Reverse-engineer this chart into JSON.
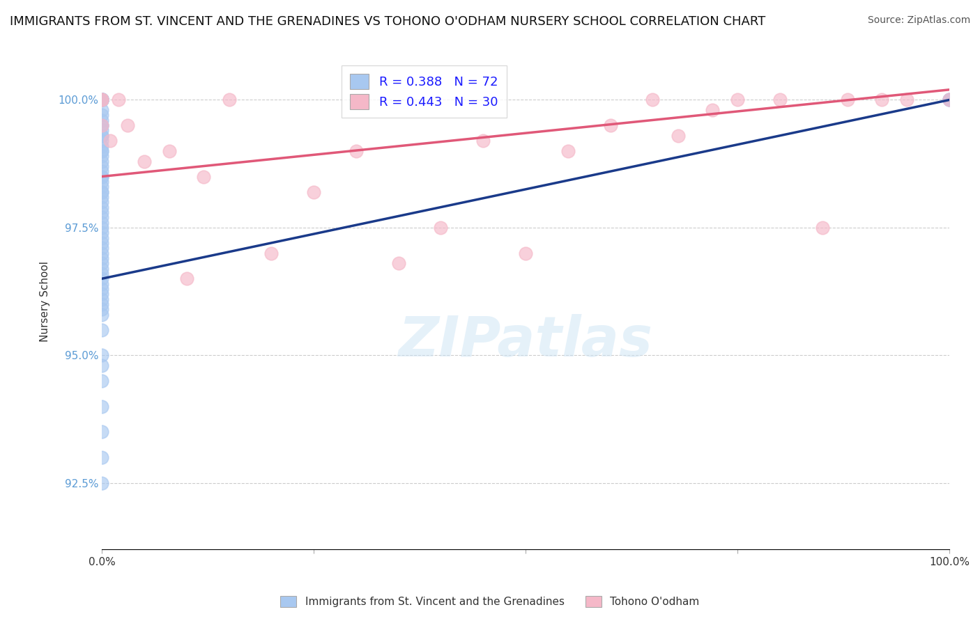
{
  "title": "IMMIGRANTS FROM ST. VINCENT AND THE GRENADINES VS TOHONO O'ODHAM NURSERY SCHOOL CORRELATION CHART",
  "source": "Source: ZipAtlas.com",
  "ylabel": "Nursery School",
  "legend_blue_label": "Immigrants from St. Vincent and the Grenadines",
  "legend_pink_label": "Tohono O'odham",
  "R_blue": 0.388,
  "N_blue": 72,
  "R_pink": 0.443,
  "N_pink": 30,
  "blue_color": "#a8c8f0",
  "pink_color": "#f5b8c8",
  "blue_line_color": "#1a3a8a",
  "pink_line_color": "#e05878",
  "blue_scatter_x": [
    0.0,
    0.0,
    0.0,
    0.0,
    0.0,
    0.0,
    0.0,
    0.0,
    0.0,
    0.0,
    0.0,
    0.0,
    0.0,
    0.0,
    0.0,
    0.0,
    0.0,
    0.0,
    0.0,
    0.0,
    0.0,
    0.0,
    0.0,
    0.0,
    0.0,
    0.0,
    0.0,
    0.0,
    0.0,
    0.0,
    0.0,
    0.0,
    0.0,
    0.0,
    0.0,
    0.0,
    0.0,
    0.0,
    0.0,
    0.0,
    0.0,
    0.0,
    0.0,
    0.0,
    0.0,
    0.0,
    0.0,
    0.0,
    0.0,
    0.0,
    0.0,
    0.0,
    0.0,
    0.0,
    0.0,
    0.0,
    0.0,
    0.0,
    0.0,
    0.0,
    0.0,
    0.0,
    0.0,
    0.0,
    0.0,
    0.0,
    0.0,
    0.0,
    0.0,
    100.0,
    100.0,
    100.0
  ],
  "blue_scatter_y": [
    100.0,
    100.0,
    100.0,
    100.0,
    100.0,
    100.0,
    100.0,
    100.0,
    100.0,
    100.0,
    100.0,
    100.0,
    99.8,
    99.7,
    99.6,
    99.5,
    99.4,
    99.3,
    99.2,
    99.1,
    99.0,
    98.9,
    98.8,
    98.7,
    98.6,
    98.5,
    98.4,
    98.3,
    98.2,
    98.1,
    98.0,
    97.9,
    97.8,
    97.7,
    97.6,
    97.5,
    97.4,
    97.3,
    97.2,
    97.1,
    97.0,
    96.9,
    96.8,
    96.7,
    96.6,
    96.5,
    96.4,
    96.3,
    96.2,
    96.1,
    96.0,
    95.9,
    95.8,
    95.5,
    95.0,
    94.5,
    94.0,
    93.5,
    93.0,
    92.5,
    99.5,
    99.3,
    99.0,
    98.5,
    98.2,
    100.0,
    100.0,
    100.0,
    94.8,
    100.0,
    100.0,
    100.0
  ],
  "pink_scatter_x": [
    0.0,
    0.0,
    0.0,
    1.0,
    2.0,
    3.0,
    5.0,
    8.0,
    10.0,
    12.0,
    15.0,
    20.0,
    25.0,
    30.0,
    35.0,
    40.0,
    45.0,
    50.0,
    55.0,
    60.0,
    65.0,
    68.0,
    72.0,
    75.0,
    80.0,
    85.0,
    88.0,
    92.0,
    95.0,
    100.0
  ],
  "pink_scatter_y": [
    100.0,
    100.0,
    99.5,
    99.2,
    100.0,
    99.5,
    98.8,
    99.0,
    96.5,
    98.5,
    100.0,
    97.0,
    98.2,
    99.0,
    96.8,
    97.5,
    99.2,
    97.0,
    99.0,
    99.5,
    100.0,
    99.3,
    99.8,
    100.0,
    100.0,
    97.5,
    100.0,
    100.0,
    100.0,
    100.0
  ],
  "blue_trendline_x": [
    0.0,
    100.0
  ],
  "blue_trendline_y": [
    96.5,
    100.0
  ],
  "pink_trendline_x": [
    0.0,
    100.0
  ],
  "pink_trendline_y": [
    98.5,
    100.2
  ],
  "xmin": 0.0,
  "xmax": 100.0,
  "ymin": 91.2,
  "ymax": 100.9,
  "yticks": [
    92.5,
    95.0,
    97.5,
    100.0
  ],
  "ytick_labels": [
    "92.5%",
    "95.0%",
    "97.5%",
    "100.0%"
  ],
  "xtick_positions": [
    0,
    25,
    50,
    75,
    100
  ],
  "xtick_labels": [
    "0.0%",
    "",
    "",
    "",
    "100.0%"
  ],
  "background_color": "#ffffff",
  "watermark": "ZIPatlas",
  "title_fontsize": 13,
  "axis_label_fontsize": 11,
  "legend_fontsize": 13
}
